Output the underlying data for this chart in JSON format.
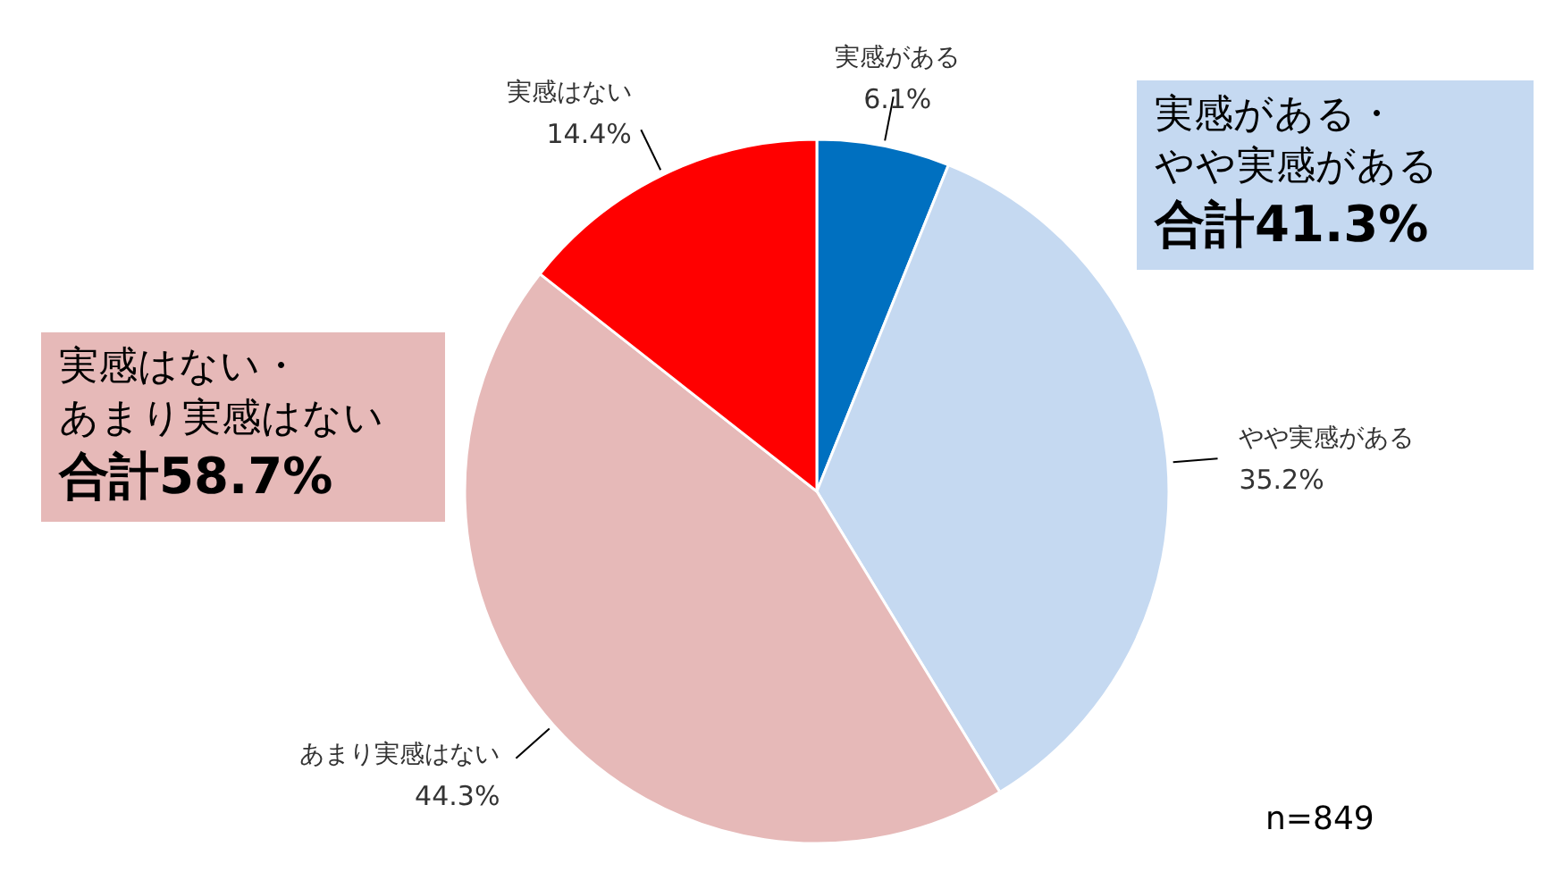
{
  "chart_data": {
    "type": "pie",
    "categories": [
      "実感がある",
      "やや実感がある",
      "あまり実感はない",
      "実感はない"
    ],
    "values": [
      6.1,
      35.2,
      44.3,
      14.4
    ],
    "colors": [
      "#0070c0",
      "#c5d9f1",
      "#e6b9b8",
      "#ff0000"
    ],
    "value_labels": [
      "6.1%",
      "35.2%",
      "44.3%",
      "14.4%"
    ],
    "annotations": [
      "実感がある・",
      "やや実感がある",
      "合計41.3%",
      "実感はない・",
      "あまり実感はない",
      "合計58.7%",
      "n=849"
    ]
  }
}
